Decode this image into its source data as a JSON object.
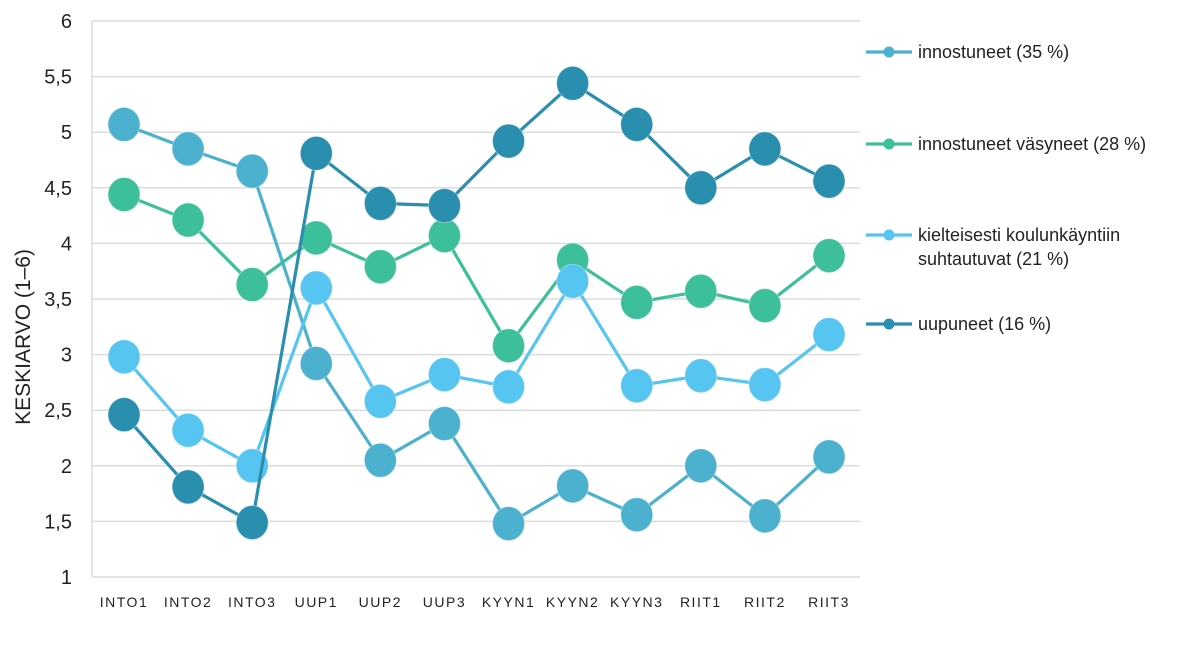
{
  "chart_data": {
    "type": "line",
    "title": "",
    "xlabel": "",
    "ylabel": "KESKIARVO (1–6)",
    "ylim": [
      1,
      6
    ],
    "yticks": [
      "1",
      "1,5",
      "2",
      "2,5",
      "3",
      "3,5",
      "4",
      "4,5",
      "5",
      "5,5",
      "6"
    ],
    "ytick_values": [
      1,
      1.5,
      2,
      2.5,
      3,
      3.5,
      4,
      4.5,
      5,
      5.5,
      6
    ],
    "categories": [
      "INTO1",
      "INTO2",
      "INTO3",
      "UUP1",
      "UUP2",
      "UUP3",
      "KYYN1",
      "KYYN2",
      "KYYN3",
      "RIIT1",
      "RIIT2",
      "RIIT3"
    ],
    "grid": true,
    "legend_position": "right",
    "series": [
      {
        "name": "innostuneet (35 %)",
        "color": "#4bb1cf",
        "values": [
          5.07,
          4.85,
          4.65,
          2.92,
          2.05,
          2.38,
          1.48,
          1.82,
          1.56,
          2.0,
          1.55,
          2.08
        ]
      },
      {
        "name": "innostuneet väsyneet (28 %)",
        "color": "#3dbf9b",
        "values": [
          4.44,
          4.21,
          3.63,
          4.05,
          3.79,
          4.07,
          3.08,
          3.85,
          3.47,
          3.57,
          3.44,
          3.89
        ]
      },
      {
        "name": "kielteisesti koulunkäyntiin suhtautuvat (21 %)",
        "name_lines": [
          "kielteisesti koulunkäyntiin",
          "suhtautuvat (21 %)"
        ],
        "color": "#57c5f2",
        "values": [
          2.98,
          2.32,
          2.0,
          3.6,
          2.58,
          2.82,
          2.71,
          3.66,
          2.72,
          2.81,
          2.73,
          3.18
        ]
      },
      {
        "name": "uupuneet (16 %)",
        "color": "#2a8fae",
        "values": [
          2.46,
          1.81,
          1.49,
          4.81,
          4.36,
          4.34,
          4.92,
          5.44,
          5.07,
          4.5,
          4.85,
          4.56
        ]
      }
    ]
  }
}
